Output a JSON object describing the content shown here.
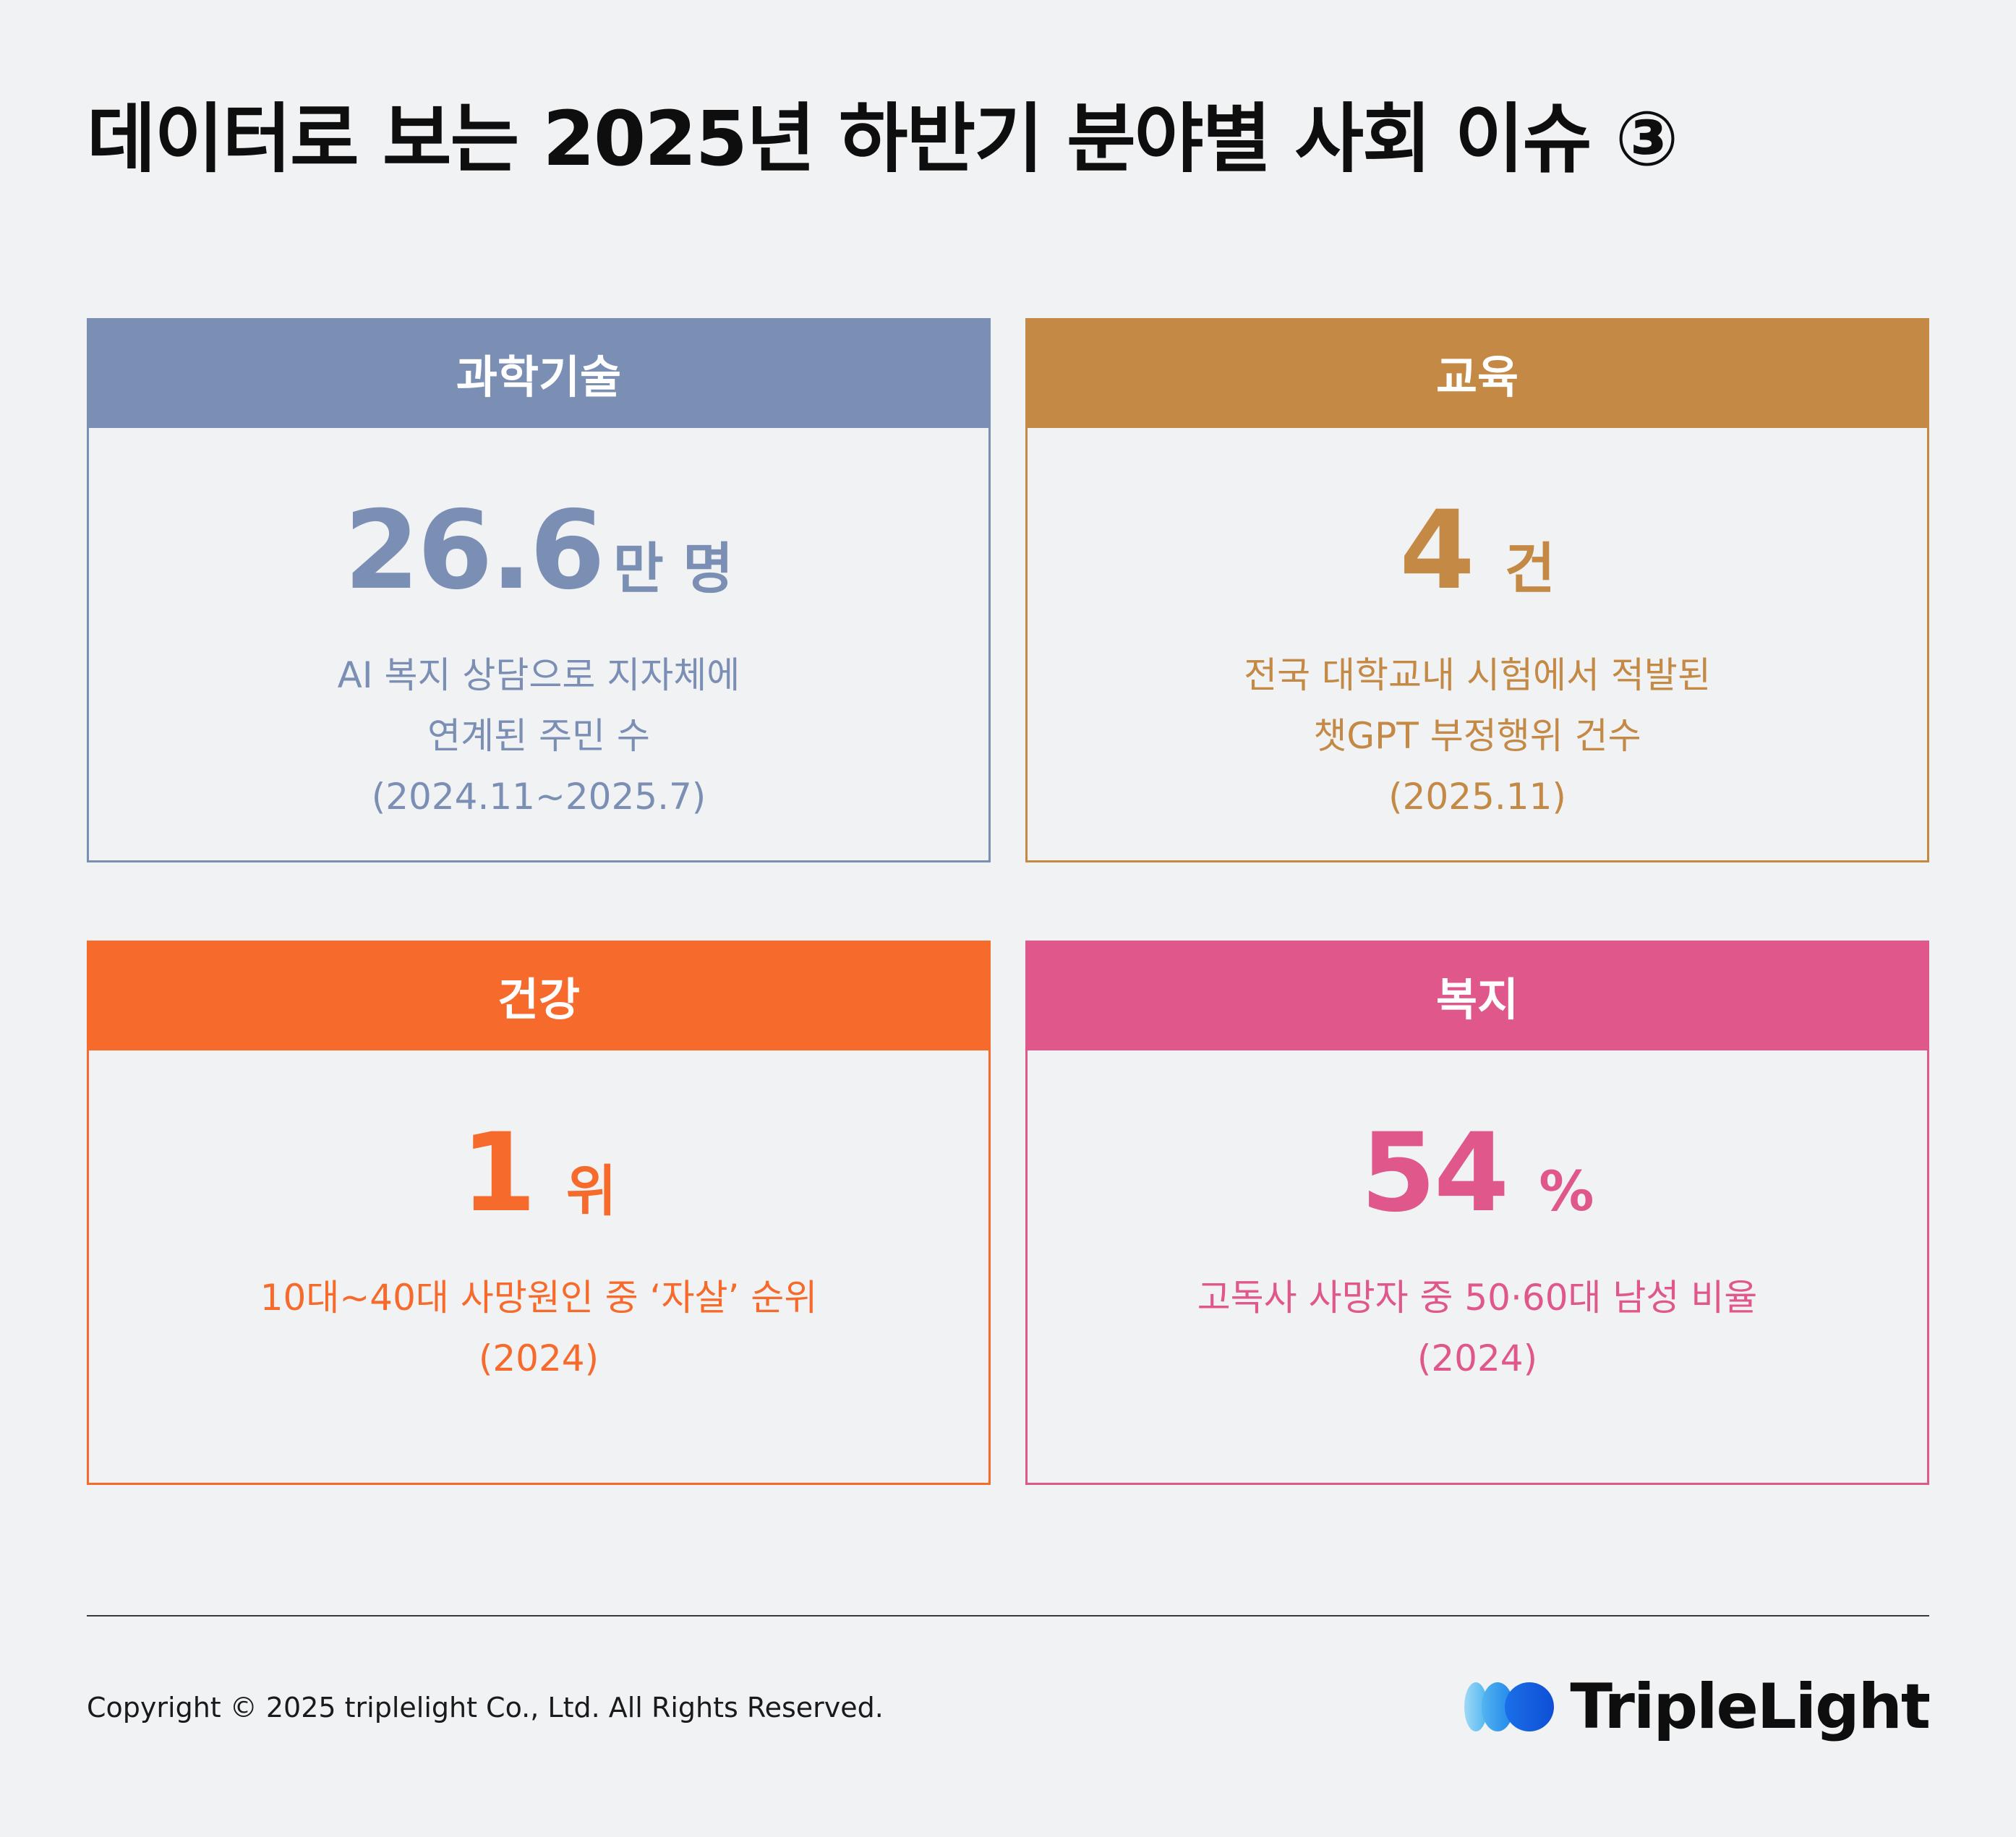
{
  "title": "데이터로 보는 2025년 하반기 분야별 사회 이슈 ③",
  "cards": [
    {
      "category": "과학기술",
      "color": "#7b8fb4",
      "value": "26.6",
      "unit": "만 명",
      "description": [
        "AI 복지 상담으로 지자체에",
        "연계된 주민 수",
        "(2024.11~2025.7)"
      ]
    },
    {
      "category": "교육",
      "color": "#c38945",
      "value": "4",
      "unit": "건",
      "description": [
        "전국 대학교내 시험에서 적발된",
        "챗GPT 부정행위 건수",
        "(2025.11)"
      ]
    },
    {
      "category": "건강",
      "color": "#f66a2b",
      "value": "1",
      "unit": "위",
      "description": [
        "10대~40대 사망원인 중 ‘자살’ 순위",
        "(2024)"
      ]
    },
    {
      "category": "복지",
      "color": "#e0578c",
      "value": "54",
      "unit": "%",
      "description": [
        "고독사 사망자 중 50·60대 남성 비율",
        "(2024)"
      ]
    }
  ],
  "footer": {
    "copyright": "Copyright © 2025 triplelight Co., Ltd. All Rights Reserved.",
    "logo_text": "TripleLight"
  }
}
